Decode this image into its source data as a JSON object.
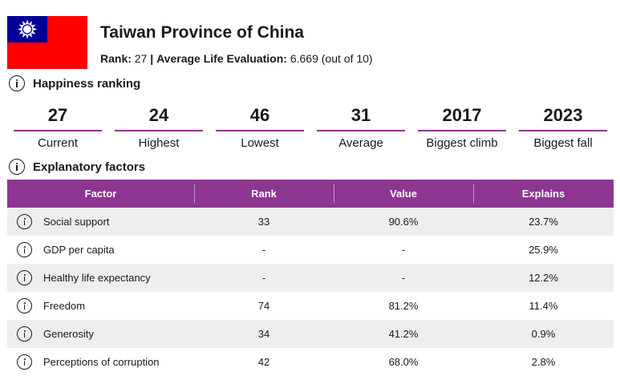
{
  "header": {
    "country": "Taiwan Province of China",
    "rank_label": "Rank:",
    "rank_value": "27",
    "separator": "|",
    "avg_label": "Average Life Evaluation:",
    "avg_value": "6.669",
    "avg_suffix": "(out of 10)",
    "flag_colors": {
      "red": "#fe0000",
      "blue": "#000095",
      "sun": "#ffffff"
    }
  },
  "ranking": {
    "title": "Happiness ranking",
    "stats": [
      {
        "value": "27",
        "label": "Current"
      },
      {
        "value": "24",
        "label": "Highest"
      },
      {
        "value": "46",
        "label": "Lowest"
      },
      {
        "value": "31",
        "label": "Average"
      },
      {
        "value": "2017",
        "label": "Biggest climb"
      },
      {
        "value": "2023",
        "label": "Biggest fall"
      }
    ]
  },
  "factors": {
    "title": "Explanatory factors",
    "columns": [
      "Factor",
      "Rank",
      "Value",
      "Explains"
    ],
    "rows": [
      {
        "factor": "Social support",
        "rank": "33",
        "value": "90.6%",
        "explains": "23.7%"
      },
      {
        "factor": "GDP per capita",
        "rank": "-",
        "value": "-",
        "explains": "25.9%"
      },
      {
        "factor": "Healthy life expectancy",
        "rank": "-",
        "value": "-",
        "explains": "12.2%"
      },
      {
        "factor": "Freedom",
        "rank": "74",
        "value": "81.2%",
        "explains": "11.4%"
      },
      {
        "factor": "Generosity",
        "rank": "34",
        "value": "41.2%",
        "explains": "0.9%"
      },
      {
        "factor": "Perceptions of corruption",
        "rank": "42",
        "value": "68.0%",
        "explains": "2.8%"
      }
    ]
  },
  "theme": {
    "accent": "#8e3592",
    "row_alt": "#eeeeee"
  }
}
